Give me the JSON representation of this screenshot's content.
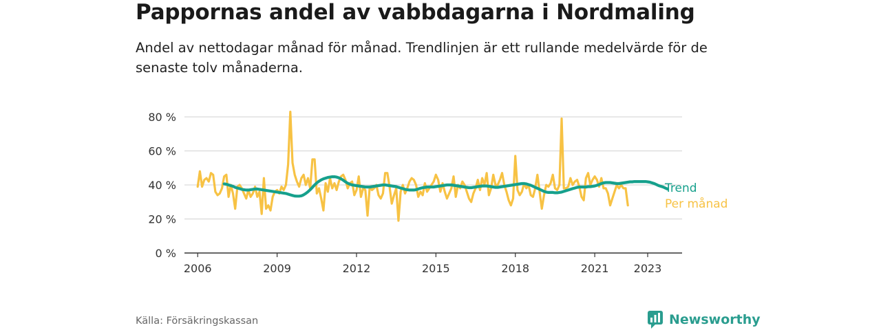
{
  "title": "Pappornas andel av vabbdagarna i Nordmaling",
  "subtitle": "Andel av nettodagar månad för månad. Trendlinjen är ett rullande medelvärde för de senaste tolv månaderna.",
  "source": "Källa: Försäkringskassan",
  "brand": {
    "name": "Newsworthy",
    "icon": "newsworthy-logo-icon"
  },
  "colors": {
    "monthly": "#f7c244",
    "trend": "#16a08c",
    "grid": "#d9d9d9",
    "axis": "#333333"
  },
  "chart_data": {
    "type": "line",
    "x_unit": "year",
    "xlim": [
      2005.5,
      2024.3
    ],
    "ylim": [
      0,
      80
    ],
    "y_ticks": [
      0,
      20,
      40,
      60,
      80
    ],
    "y_tick_labels": [
      "0 %",
      "20 %",
      "40 %",
      "60 %",
      "80 %"
    ],
    "x_ticks": [
      2006,
      2009,
      2012,
      2015,
      2018,
      2021,
      2023
    ],
    "x_tick_labels": [
      "2006",
      "2009",
      "2012",
      "2015",
      "2018",
      "2021",
      "2023"
    ],
    "grid": true,
    "series": [
      {
        "name": "Per månad",
        "x_start": 2006.0,
        "x_step": 0.0833333,
        "values": [
          39,
          48,
          39,
          43,
          44,
          42,
          47,
          46,
          36,
          34,
          35,
          38,
          45,
          46,
          33,
          40,
          35,
          26,
          39,
          40,
          38,
          35,
          32,
          37,
          33,
          35,
          39,
          33,
          36,
          23,
          44,
          26,
          28,
          25,
          33,
          36,
          37,
          35,
          39,
          37,
          40,
          52,
          83,
          53,
          46,
          42,
          39,
          44,
          46,
          40,
          44,
          38,
          55,
          55,
          35,
          38,
          32,
          25,
          41,
          36,
          44,
          38,
          41,
          37,
          42,
          45,
          46,
          43,
          38,
          41,
          42,
          34,
          37,
          45,
          33,
          38,
          37,
          22,
          39,
          37,
          38,
          40,
          34,
          32,
          35,
          47,
          47,
          39,
          29,
          34,
          38,
          19,
          36,
          40,
          35,
          38,
          42,
          44,
          43,
          40,
          33,
          36,
          34,
          41,
          36,
          38,
          40,
          42,
          46,
          43,
          36,
          41,
          36,
          32,
          35,
          38,
          45,
          33,
          40,
          38,
          42,
          40,
          36,
          32,
          30,
          35,
          38,
          43,
          37,
          44,
          40,
          47,
          34,
          38,
          46,
          40,
          40,
          43,
          47,
          40,
          36,
          31,
          28,
          32,
          57,
          37,
          34,
          36,
          41,
          38,
          40,
          34,
          33,
          38,
          46,
          36,
          26,
          34,
          40,
          39,
          41,
          46,
          38,
          37,
          40,
          79,
          38,
          38,
          39,
          44,
          40,
          42,
          43,
          39,
          33,
          31,
          44,
          47,
          40,
          43,
          45,
          43,
          39,
          44,
          38,
          38,
          35,
          28,
          32,
          36,
          40,
          38,
          40,
          38,
          38,
          28
        ]
      },
      {
        "name": "Trend",
        "x_start": 2007.0,
        "x_step": 0.0833333,
        "values": [
          40.6,
          40.4,
          40.0,
          39.6,
          39.2,
          38.6,
          38.2,
          37.8,
          37.4,
          37.2,
          37.0,
          37.0,
          37.2,
          37.4,
          37.6,
          37.6,
          37.4,
          37.2,
          37.0,
          36.8,
          36.6,
          36.4,
          36.2,
          36.0,
          35.8,
          35.6,
          35.4,
          35.2,
          35.0,
          34.6,
          34.2,
          33.8,
          33.5,
          33.4,
          33.4,
          33.6,
          34.2,
          35.0,
          36.0,
          37.2,
          38.6,
          40.0,
          41.2,
          42.2,
          43.0,
          43.6,
          44.0,
          44.4,
          44.6,
          44.8,
          44.8,
          44.6,
          44.2,
          43.6,
          42.8,
          41.8,
          41.0,
          40.4,
          40.0,
          39.8,
          39.6,
          39.4,
          39.2,
          39.0,
          38.8,
          38.8,
          38.8,
          39.0,
          39.2,
          39.4,
          39.6,
          39.8,
          40.0,
          40.0,
          39.8,
          39.6,
          39.4,
          39.2,
          39.0,
          38.6,
          38.2,
          37.8,
          37.4,
          37.2,
          37.0,
          37.0,
          37.0,
          37.2,
          37.6,
          38.0,
          38.4,
          38.6,
          38.8,
          38.8,
          38.8,
          38.8,
          39.0,
          39.2,
          39.4,
          39.6,
          39.8,
          40.0,
          40.0,
          40.0,
          39.8,
          39.6,
          39.4,
          39.2,
          39.0,
          38.8,
          38.6,
          38.4,
          38.4,
          38.6,
          38.8,
          39.0,
          39.2,
          39.4,
          39.4,
          39.4,
          39.2,
          39.0,
          38.8,
          38.6,
          38.6,
          38.8,
          39.0,
          39.2,
          39.4,
          39.6,
          39.8,
          40.0,
          40.2,
          40.4,
          40.6,
          40.8,
          40.8,
          40.6,
          40.2,
          39.8,
          39.2,
          38.6,
          38.0,
          37.4,
          36.8,
          36.2,
          35.8,
          35.6,
          35.6,
          35.6,
          35.4,
          35.4,
          35.6,
          35.8,
          36.2,
          36.6,
          37.0,
          37.4,
          37.8,
          38.2,
          38.6,
          38.8,
          38.8,
          38.8,
          38.8,
          39.0,
          39.0,
          39.2,
          39.4,
          39.8,
          40.2,
          40.8,
          41.2,
          41.4,
          41.4,
          41.4,
          41.2,
          41.0,
          40.8,
          40.8,
          41.0,
          41.2,
          41.4,
          41.6,
          41.8,
          41.8,
          42.0,
          42.0,
          42.0,
          42.0,
          42.0,
          42.0,
          41.8,
          41.6,
          41.2,
          40.8,
          40.2,
          39.6,
          39.2,
          38.8,
          38.2,
          37.6
        ]
      }
    ],
    "series_labels": {
      "trend": "Trend",
      "monthly": "Per månad"
    }
  }
}
